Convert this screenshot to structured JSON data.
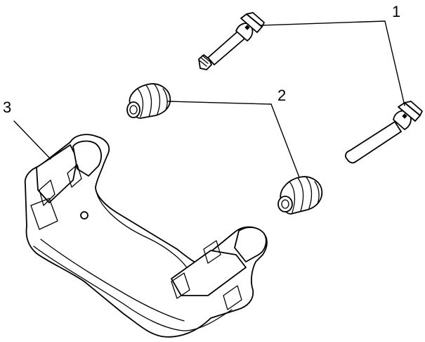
{
  "callouts": [
    {
      "label": "1"
    },
    {
      "label": "2"
    },
    {
      "label": "3"
    }
  ],
  "colors": {
    "line": "#000000",
    "background": "#ffffff"
  }
}
